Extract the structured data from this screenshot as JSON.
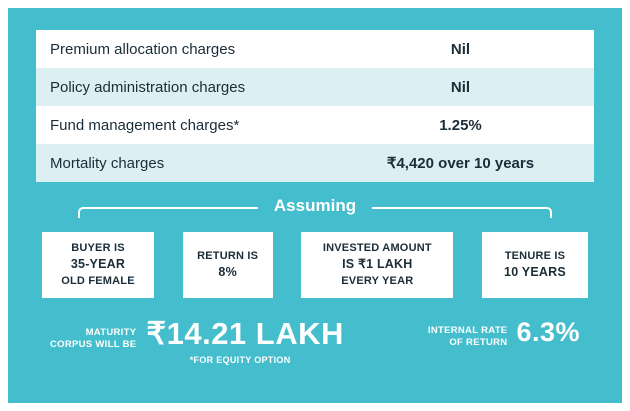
{
  "theme": {
    "background": "#44BECD",
    "frame": "#FFFFFF",
    "card_bg": "#FFFFFF",
    "row_alt_bg": "#DCEFF3",
    "text_dark": "#1B2D38",
    "text_white": "#FFFFFF"
  },
  "charges_table": {
    "rows": [
      {
        "label": "Premium allocation charges",
        "value": "Nil"
      },
      {
        "label": "Policy administration charges",
        "value": "Nil"
      },
      {
        "label": "Fund management charges*",
        "value": "1.25%"
      },
      {
        "label": "Mortality charges",
        "value": "₹4,420 over 10 years"
      }
    ]
  },
  "assuming": {
    "label": "Assuming",
    "boxes": [
      {
        "line1": "BUYER IS",
        "line2": "35-YEAR",
        "line3": "OLD FEMALE"
      },
      {
        "line1": "RETURN IS",
        "line2": "8%"
      },
      {
        "line1": "INVESTED AMOUNT",
        "line2": "IS ₹1 LAKH",
        "line3": "EVERY YEAR"
      },
      {
        "line1": "TENURE IS",
        "line2": "10 YEARS"
      }
    ]
  },
  "results": {
    "maturity_label_line1": "MATURITY",
    "maturity_label_line2": "CORPUS WILL BE",
    "maturity_value": "₹14.21 LAKH",
    "footnote": "*FOR EQUITY OPTION",
    "irr_label_line1": "INTERNAL RATE",
    "irr_label_line2": "OF RETURN",
    "irr_value": "6.3%"
  }
}
